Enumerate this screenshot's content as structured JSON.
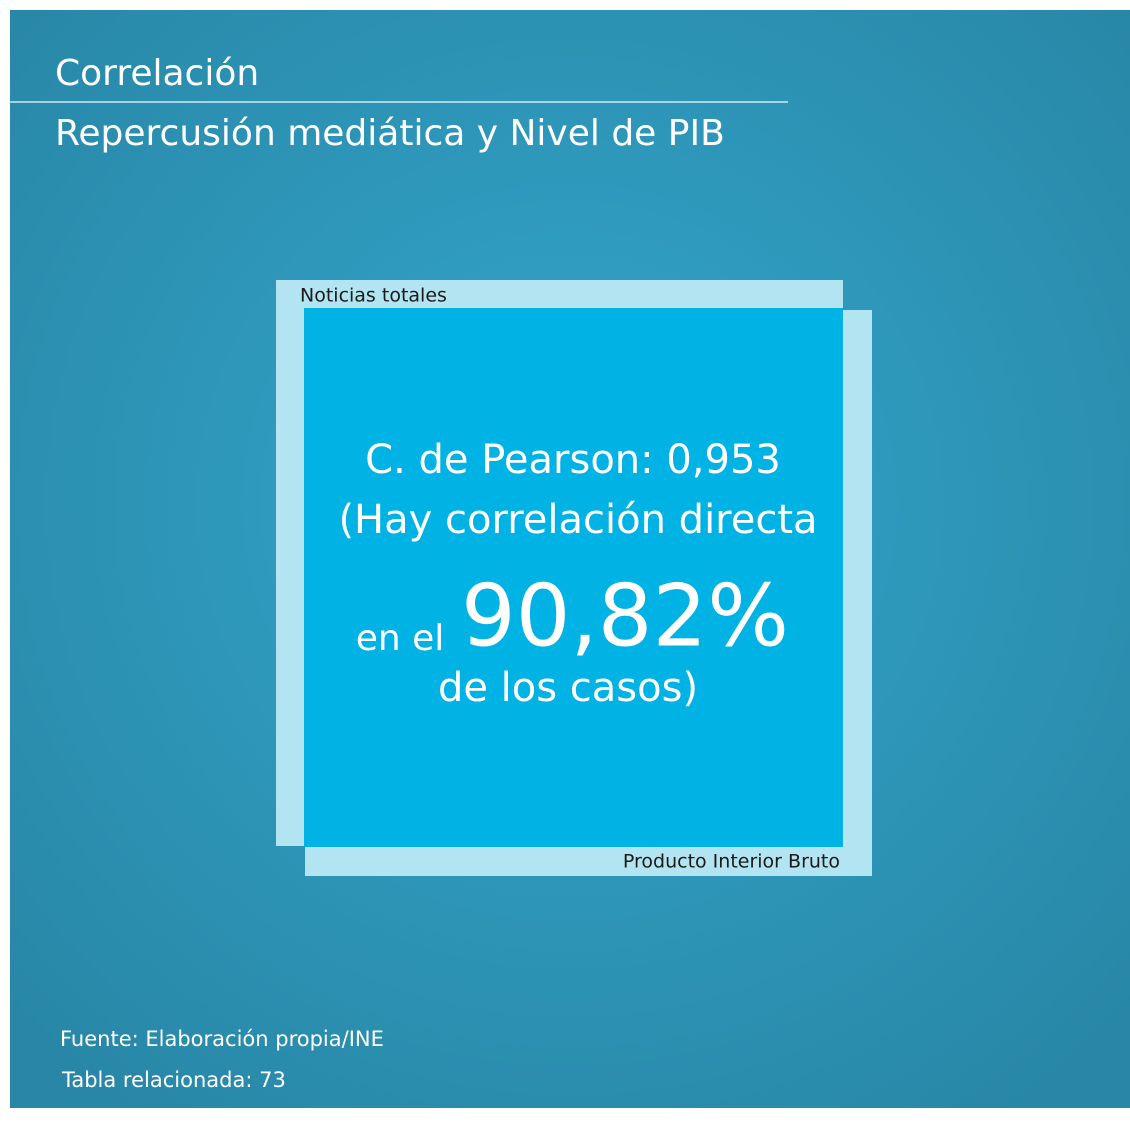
{
  "header": {
    "title": "Correlación",
    "subtitle": "Repercusión mediática y Nivel de PIB"
  },
  "panel": {
    "top_label": "Noticias totales",
    "bottom_label": "Producto Interior Bruto",
    "line1": "C. de Pearson: 0,953",
    "line2": "(Hay correlación directa",
    "line3_prefix": "en el",
    "line3_value": "90,82%",
    "line4": "de los casos)"
  },
  "footer": {
    "source": "Fuente: Elaboración propia/INE",
    "table": "Tabla relacionada: 73"
  }
}
